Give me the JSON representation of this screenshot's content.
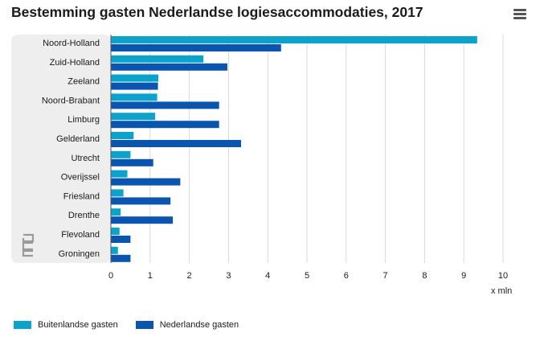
{
  "title": "Bestemming gasten Nederlandse logiesaccommodaties, 2017",
  "menu_icon": "hamburger-menu-icon",
  "logo_icon": "cbs-logo-icon",
  "colors": {
    "buitenlandse": "#0ba2cc",
    "nederlandse": "#0a55b0",
    "plot_bg": "#eeeeee",
    "grid": "#d9d9d9"
  },
  "unit_label": "x mln",
  "chart_data": {
    "type": "bar",
    "orientation": "horizontal",
    "title": "Bestemming gasten Nederlandse logiesaccommodaties, 2017",
    "xlabel": "x mln",
    "ylabel": "",
    "xlim": [
      0,
      10
    ],
    "xticks": [
      0,
      1,
      2,
      3,
      4,
      5,
      6,
      7,
      8,
      9,
      10
    ],
    "grid": true,
    "legend_position": "bottom-left",
    "categories": [
      "Noord-Holland",
      "Zuid-Holland",
      "Zeeland",
      "Noord-Brabant",
      "Limburg",
      "Gelderland",
      "Utrecht",
      "Overijssel",
      "Friesland",
      "Drenthe",
      "Flevoland",
      "Groningen"
    ],
    "series": [
      {
        "name": "Buitenlandse gasten",
        "color": "#0ba2cc",
        "values": [
          9.34,
          2.36,
          1.21,
          1.18,
          1.13,
          0.58,
          0.5,
          0.42,
          0.32,
          0.25,
          0.22,
          0.18
        ]
      },
      {
        "name": "Nederlandse gasten",
        "color": "#0a55b0",
        "values": [
          4.34,
          2.97,
          1.2,
          2.76,
          2.76,
          3.32,
          1.08,
          1.77,
          1.52,
          1.58,
          0.5,
          0.5
        ]
      }
    ]
  }
}
